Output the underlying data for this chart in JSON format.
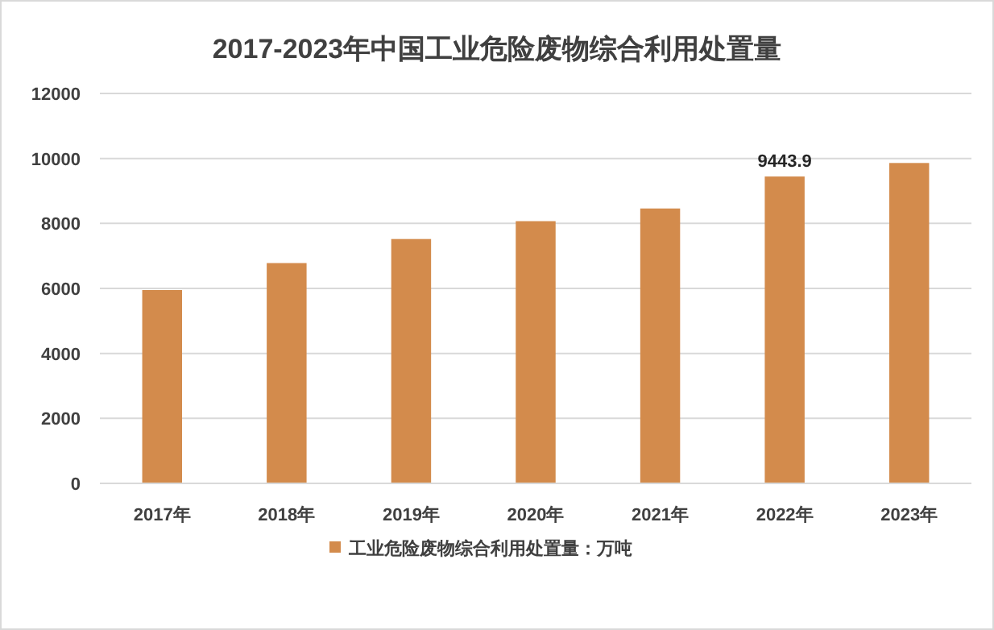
{
  "chart_data": {
    "type": "bar",
    "title": "2017-2023年中国工业危险废物综合利用处置量",
    "categories": [
      "2017年",
      "2018年",
      "2019年",
      "2020年",
      "2021年",
      "2022年",
      "2023年"
    ],
    "series": [
      {
        "name": "工业危险废物综合利用处置量：万吨",
        "color": "#d38b4c",
        "values": [
          5950,
          6780,
          7520,
          8070,
          8460,
          9443.9,
          9860
        ],
        "value_labels": [
          null,
          null,
          null,
          null,
          null,
          "9443.9",
          null
        ]
      }
    ],
    "ylim": [
      0,
      12000
    ],
    "yticks": [
      0,
      2000,
      4000,
      6000,
      8000,
      10000,
      12000
    ],
    "grid": "y",
    "legend": "bottom"
  }
}
